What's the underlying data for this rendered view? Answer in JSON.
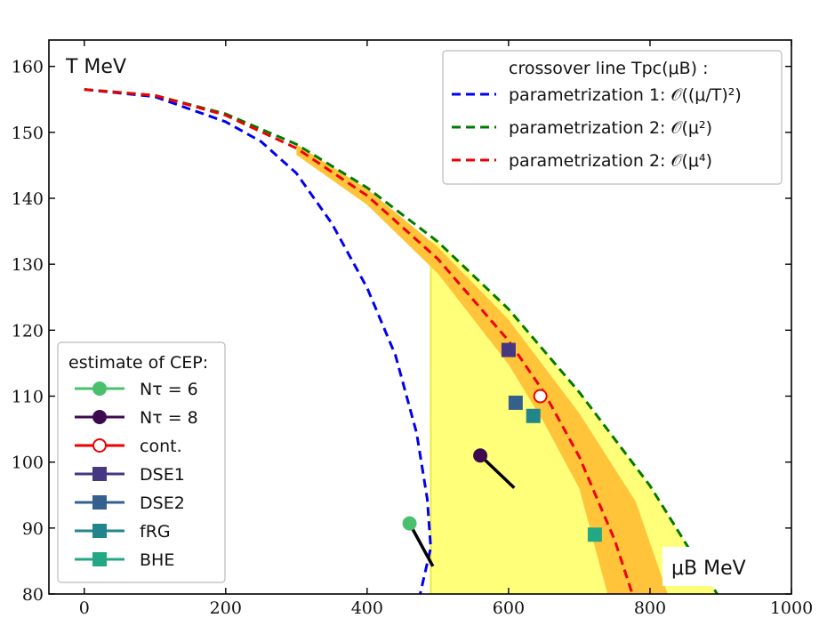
{
  "chart_data": {
    "type": "line",
    "xlim": [
      -50,
      1000
    ],
    "ylim": [
      80,
      164
    ],
    "x_ticks": [
      0,
      200,
      400,
      600,
      800,
      1000
    ],
    "y_ticks": [
      80,
      90,
      100,
      110,
      120,
      130,
      140,
      150,
      160
    ],
    "x_tick_labels": [
      "0",
      "200",
      "400",
      "600",
      "800",
      "1000"
    ],
    "y_tick_labels": [
      "80",
      "90",
      "100",
      "110",
      "120",
      "130",
      "140",
      "150",
      "160"
    ],
    "xlabel": "μB MeV",
    "ylabel": "T MeV",
    "grid": false,
    "crossover_legend": {
      "title": "crossover line Tpc(μB) :",
      "placement": "top-right",
      "entries": [
        {
          "label": "parametrization 1: 𝒪((μ/T)²)",
          "color": "#0000ee",
          "style": "dashed"
        },
        {
          "label": "parametrization 2: 𝒪(μ²)",
          "color": "#007a00",
          "style": "dashed"
        },
        {
          "label": "parametrization 2: 𝒪(μ⁴)",
          "color": "#ee0000",
          "style": "dashed"
        }
      ]
    },
    "cep_legend": {
      "title": "estimate of CEP:",
      "placement": "lower-left",
      "entries": [
        {
          "label": "Nτ = 6",
          "color": "#48c06e",
          "marker": "circle"
        },
        {
          "label": "Nτ = 8",
          "color": "#3d0a50",
          "marker": "circle"
        },
        {
          "label": "cont.",
          "color": "#ee0000",
          "marker": "open-circle"
        },
        {
          "label": "DSE1",
          "color": "#453781",
          "marker": "square"
        },
        {
          "label": "DSE2",
          "color": "#35608d",
          "marker": "square"
        },
        {
          "label": "fRG",
          "color": "#21858c",
          "marker": "square"
        },
        {
          "label": "BHE",
          "color": "#22a884",
          "marker": "square"
        }
      ]
    },
    "series": [
      {
        "name": "parametrization 1: 𝒪((μ/T)²)",
        "color": "#0000ee",
        "points": [
          [
            0,
            156.5
          ],
          [
            100,
            155.4
          ],
          [
            200,
            151.6
          ],
          [
            250,
            148.6
          ],
          [
            300,
            143.8
          ],
          [
            350,
            136.2
          ],
          [
            400,
            126.4
          ],
          [
            440,
            116.2
          ],
          [
            470,
            104.4
          ],
          [
            485,
            94.4
          ],
          [
            490,
            87
          ],
          [
            475,
            80
          ]
        ]
      },
      {
        "name": "parametrization 2: 𝒪(μ²)",
        "color": "#007a00",
        "points": [
          [
            0,
            156.5
          ],
          [
            100,
            155.6
          ],
          [
            200,
            152.8
          ],
          [
            300,
            148.2
          ],
          [
            400,
            141.6
          ],
          [
            500,
            133.4
          ],
          [
            600,
            123.2
          ],
          [
            700,
            110.6
          ],
          [
            800,
            96.4
          ],
          [
            895,
            80
          ]
        ]
      },
      {
        "name": "parametrization 2: 𝒪(μ⁴)",
        "color": "#ee0000",
        "points": [
          [
            0,
            156.5
          ],
          [
            100,
            155.6
          ],
          [
            200,
            152.6
          ],
          [
            300,
            147.6
          ],
          [
            400,
            140.4
          ],
          [
            500,
            130.8
          ],
          [
            600,
            118.4
          ],
          [
            650,
            110.6
          ],
          [
            700,
            100.8
          ],
          [
            750,
            88.2
          ],
          [
            775,
            80
          ]
        ]
      }
    ],
    "bands": [
      {
        "color": "#ffff7a",
        "upper": [
          [
            300,
            148.2
          ],
          [
            400,
            141.6
          ],
          [
            500,
            133.4
          ],
          [
            600,
            123.2
          ],
          [
            700,
            110.6
          ],
          [
            800,
            96.4
          ],
          [
            895,
            80
          ]
        ],
        "lower": [
          [
            490,
            87
          ],
          [
            490,
            80
          ]
        ],
        "vertical_line_x": 490
      },
      {
        "color": "#ffc43a",
        "upper": [
          [
            300,
            148.2
          ],
          [
            400,
            141.4
          ],
          [
            500,
            132.6
          ],
          [
            600,
            121.6
          ],
          [
            700,
            107.4
          ],
          [
            780,
            94
          ],
          [
            825,
            80
          ]
        ],
        "lower": [
          [
            300,
            146.6
          ],
          [
            400,
            139
          ],
          [
            500,
            128.6
          ],
          [
            600,
            114.8
          ],
          [
            650,
            106
          ],
          [
            700,
            96
          ],
          [
            740,
            80
          ]
        ]
      }
    ],
    "cep_points": [
      {
        "name": "Nτ = 6",
        "x": 460,
        "y": 90.7,
        "error_to": [
          493,
          84.2
        ]
      },
      {
        "name": "Nτ = 8",
        "x": 560,
        "y": 101,
        "error_to": [
          608,
          96.1
        ]
      },
      {
        "name": "cont.",
        "x": 645,
        "y": 110
      },
      {
        "name": "DSE1",
        "x": 600,
        "y": 117
      },
      {
        "name": "DSE2",
        "x": 610,
        "y": 109
      },
      {
        "name": "fRG",
        "x": 635,
        "y": 107
      },
      {
        "name": "BHE",
        "x": 722,
        "y": 89
      }
    ]
  }
}
